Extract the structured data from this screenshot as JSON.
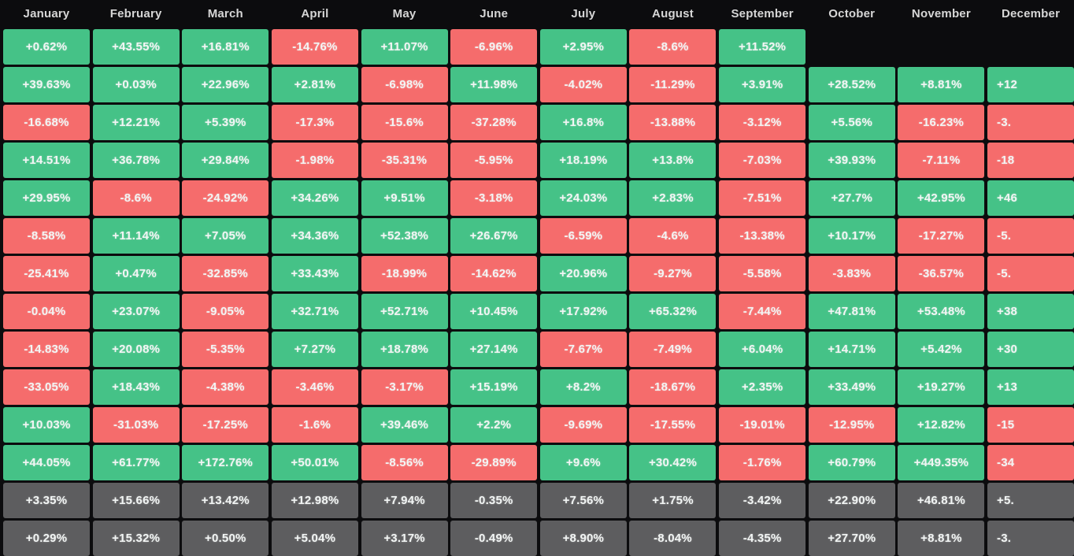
{
  "chart_data": {
    "type": "heatmap",
    "description": "Monthly returns (%) heatmap; rows are years (labels cropped out of view), columns are months; bottom two gray rows are summary statistics; December column and last row are clipped by the viewport edge",
    "legend_position": "none",
    "grid": "off",
    "columns": [
      "January",
      "February",
      "March",
      "April",
      "May",
      "June",
      "July",
      "August",
      "September",
      "October",
      "November",
      "December"
    ],
    "december_column_clipped": true,
    "rows": [
      {
        "type": "month-returns",
        "values": [
          "+0.62%",
          "+43.55%",
          "+16.81%",
          "-14.76%",
          "+11.07%",
          "-6.96%",
          "+2.95%",
          "-8.6%",
          "+11.52%",
          null,
          null,
          null
        ]
      },
      {
        "type": "month-returns",
        "values": [
          "+39.63%",
          "+0.03%",
          "+22.96%",
          "+2.81%",
          "-6.98%",
          "+11.98%",
          "-4.02%",
          "-11.29%",
          "+3.91%",
          "+28.52%",
          "+8.81%",
          "+12"
        ]
      },
      {
        "type": "month-returns",
        "values": [
          "-16.68%",
          "+12.21%",
          "+5.39%",
          "-17.3%",
          "-15.6%",
          "-37.28%",
          "+16.8%",
          "-13.88%",
          "-3.12%",
          "+5.56%",
          "-16.23%",
          "-3."
        ]
      },
      {
        "type": "month-returns",
        "values": [
          "+14.51%",
          "+36.78%",
          "+29.84%",
          "-1.98%",
          "-35.31%",
          "-5.95%",
          "+18.19%",
          "+13.8%",
          "-7.03%",
          "+39.93%",
          "-7.11%",
          "-18"
        ]
      },
      {
        "type": "month-returns",
        "values": [
          "+29.95%",
          "-8.6%",
          "-24.92%",
          "+34.26%",
          "+9.51%",
          "-3.18%",
          "+24.03%",
          "+2.83%",
          "-7.51%",
          "+27.7%",
          "+42.95%",
          "+46"
        ]
      },
      {
        "type": "month-returns",
        "values": [
          "-8.58%",
          "+11.14%",
          "+7.05%",
          "+34.36%",
          "+52.38%",
          "+26.67%",
          "-6.59%",
          "-4.6%",
          "-13.38%",
          "+10.17%",
          "-17.27%",
          "-5."
        ]
      },
      {
        "type": "month-returns",
        "values": [
          "-25.41%",
          "+0.47%",
          "-32.85%",
          "+33.43%",
          "-18.99%",
          "-14.62%",
          "+20.96%",
          "-9.27%",
          "-5.58%",
          "-3.83%",
          "-36.57%",
          "-5."
        ]
      },
      {
        "type": "month-returns",
        "values": [
          "-0.04%",
          "+23.07%",
          "-9.05%",
          "+32.71%",
          "+52.71%",
          "+10.45%",
          "+17.92%",
          "+65.32%",
          "-7.44%",
          "+47.81%",
          "+53.48%",
          "+38"
        ]
      },
      {
        "type": "month-returns",
        "values": [
          "-14.83%",
          "+20.08%",
          "-5.35%",
          "+7.27%",
          "+18.78%",
          "+27.14%",
          "-7.67%",
          "-7.49%",
          "+6.04%",
          "+14.71%",
          "+5.42%",
          "+30"
        ]
      },
      {
        "type": "month-returns",
        "values": [
          "-33.05%",
          "+18.43%",
          "-4.38%",
          "-3.46%",
          "-3.17%",
          "+15.19%",
          "+8.2%",
          "-18.67%",
          "+2.35%",
          "+33.49%",
          "+19.27%",
          "+13"
        ]
      },
      {
        "type": "month-returns",
        "values": [
          "+10.03%",
          "-31.03%",
          "-17.25%",
          "-1.6%",
          "+39.46%",
          "+2.2%",
          "-9.69%",
          "-17.55%",
          "-19.01%",
          "-12.95%",
          "+12.82%",
          "-15"
        ]
      },
      {
        "type": "month-returns",
        "values": [
          "+44.05%",
          "+61.77%",
          "+172.76%",
          "+50.01%",
          "-8.56%",
          "-29.89%",
          "+9.6%",
          "+30.42%",
          "-1.76%",
          "+60.79%",
          "+449.35%",
          "-34"
        ]
      },
      {
        "type": "summary",
        "values": [
          "+3.35%",
          "+15.66%",
          "+13.42%",
          "+12.98%",
          "+7.94%",
          "-0.35%",
          "+7.56%",
          "+1.75%",
          "-3.42%",
          "+22.90%",
          "+46.81%",
          "+5."
        ]
      },
      {
        "type": "summary",
        "values": [
          "+0.29%",
          "+15.32%",
          "+0.50%",
          "+5.04%",
          "+3.17%",
          "-0.49%",
          "+8.90%",
          "-8.04%",
          "-4.35%",
          "+27.70%",
          "+8.81%",
          "-3."
        ]
      }
    ],
    "colors": {
      "positive": "#45c287",
      "negative": "#f56c6c",
      "summary": "#5d5d5f",
      "background": "#0c0c0e",
      "header_text": "#d6d6d6",
      "cell_text": "#f2f5f4"
    }
  }
}
